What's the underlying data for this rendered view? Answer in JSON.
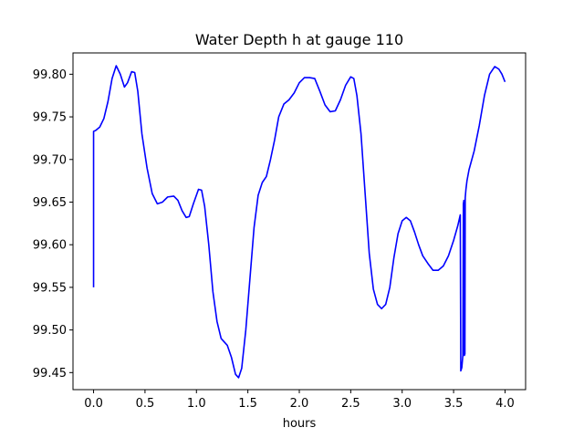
{
  "chart_data": {
    "type": "line",
    "title": "Water Depth h at gauge 110",
    "xlabel": "hours",
    "ylabel": "",
    "xlim": [
      -0.2,
      4.2
    ],
    "ylim": [
      99.43,
      99.825
    ],
    "xticks": [
      0.0,
      0.5,
      1.0,
      1.5,
      2.0,
      2.5,
      3.0,
      3.5,
      4.0
    ],
    "xtick_labels": [
      "0.0",
      "0.5",
      "1.0",
      "1.5",
      "2.0",
      "2.5",
      "3.0",
      "3.5",
      "4.0"
    ],
    "yticks": [
      99.45,
      99.5,
      99.55,
      99.6,
      99.65,
      99.7,
      99.75,
      99.8
    ],
    "ytick_labels": [
      "99.45",
      "99.50",
      "99.55",
      "99.60",
      "99.65",
      "99.70",
      "99.75",
      "99.80"
    ],
    "grid": false,
    "series": [
      {
        "color": "#0000ff",
        "points": [
          [
            0.0,
            99.55
          ],
          [
            0.0,
            99.733
          ],
          [
            0.02,
            99.734
          ],
          [
            0.06,
            99.738
          ],
          [
            0.1,
            99.748
          ],
          [
            0.14,
            99.768
          ],
          [
            0.18,
            99.795
          ],
          [
            0.22,
            99.81
          ],
          [
            0.26,
            99.8
          ],
          [
            0.3,
            99.785
          ],
          [
            0.33,
            99.79
          ],
          [
            0.37,
            99.803
          ],
          [
            0.4,
            99.802
          ],
          [
            0.43,
            99.78
          ],
          [
            0.47,
            99.73
          ],
          [
            0.52,
            99.69
          ],
          [
            0.57,
            99.66
          ],
          [
            0.62,
            99.648
          ],
          [
            0.67,
            99.65
          ],
          [
            0.72,
            99.656
          ],
          [
            0.78,
            99.657
          ],
          [
            0.82,
            99.652
          ],
          [
            0.86,
            99.64
          ],
          [
            0.9,
            99.632
          ],
          [
            0.93,
            99.633
          ],
          [
            0.97,
            99.648
          ],
          [
            1.02,
            99.665
          ],
          [
            1.05,
            99.664
          ],
          [
            1.08,
            99.645
          ],
          [
            1.12,
            99.6
          ],
          [
            1.16,
            99.545
          ],
          [
            1.2,
            99.51
          ],
          [
            1.24,
            99.49
          ],
          [
            1.3,
            99.482
          ],
          [
            1.34,
            99.468
          ],
          [
            1.38,
            99.448
          ],
          [
            1.41,
            99.444
          ],
          [
            1.44,
            99.455
          ],
          [
            1.48,
            99.5
          ],
          [
            1.52,
            99.56
          ],
          [
            1.56,
            99.62
          ],
          [
            1.6,
            99.658
          ],
          [
            1.64,
            99.673
          ],
          [
            1.68,
            99.68
          ],
          [
            1.72,
            99.7
          ],
          [
            1.76,
            99.723
          ],
          [
            1.8,
            99.75
          ],
          [
            1.85,
            99.765
          ],
          [
            1.9,
            99.77
          ],
          [
            1.95,
            99.778
          ],
          [
            2.0,
            99.79
          ],
          [
            2.05,
            99.796
          ],
          [
            2.1,
            99.796
          ],
          [
            2.15,
            99.795
          ],
          [
            2.2,
            99.78
          ],
          [
            2.25,
            99.764
          ],
          [
            2.3,
            99.756
          ],
          [
            2.35,
            99.757
          ],
          [
            2.4,
            99.77
          ],
          [
            2.45,
            99.787
          ],
          [
            2.5,
            99.797
          ],
          [
            2.53,
            99.795
          ],
          [
            2.56,
            99.775
          ],
          [
            2.6,
            99.73
          ],
          [
            2.64,
            99.66
          ],
          [
            2.68,
            99.59
          ],
          [
            2.72,
            99.548
          ],
          [
            2.76,
            99.53
          ],
          [
            2.8,
            99.525
          ],
          [
            2.84,
            99.53
          ],
          [
            2.88,
            99.55
          ],
          [
            2.92,
            99.585
          ],
          [
            2.96,
            99.613
          ],
          [
            3.0,
            99.628
          ],
          [
            3.04,
            99.632
          ],
          [
            3.08,
            99.628
          ],
          [
            3.12,
            99.615
          ],
          [
            3.16,
            99.6
          ],
          [
            3.2,
            99.587
          ],
          [
            3.25,
            99.578
          ],
          [
            3.3,
            99.57
          ],
          [
            3.35,
            99.57
          ],
          [
            3.4,
            99.575
          ],
          [
            3.45,
            99.587
          ],
          [
            3.5,
            99.605
          ],
          [
            3.54,
            99.622
          ],
          [
            3.565,
            99.635
          ],
          [
            3.57,
            99.452
          ],
          [
            3.58,
            99.456
          ],
          [
            3.59,
            99.47
          ],
          [
            3.595,
            99.648
          ],
          [
            3.6,
            99.652
          ],
          [
            3.605,
            99.47
          ],
          [
            3.61,
            99.472
          ],
          [
            3.613,
            99.655
          ],
          [
            3.62,
            99.665
          ],
          [
            3.63,
            99.675
          ],
          [
            3.65,
            99.688
          ],
          [
            3.7,
            99.71
          ],
          [
            3.75,
            99.74
          ],
          [
            3.8,
            99.775
          ],
          [
            3.85,
            99.8
          ],
          [
            3.9,
            99.809
          ],
          [
            3.94,
            99.806
          ],
          [
            3.97,
            99.8
          ],
          [
            4.0,
            99.791
          ]
        ]
      }
    ]
  }
}
